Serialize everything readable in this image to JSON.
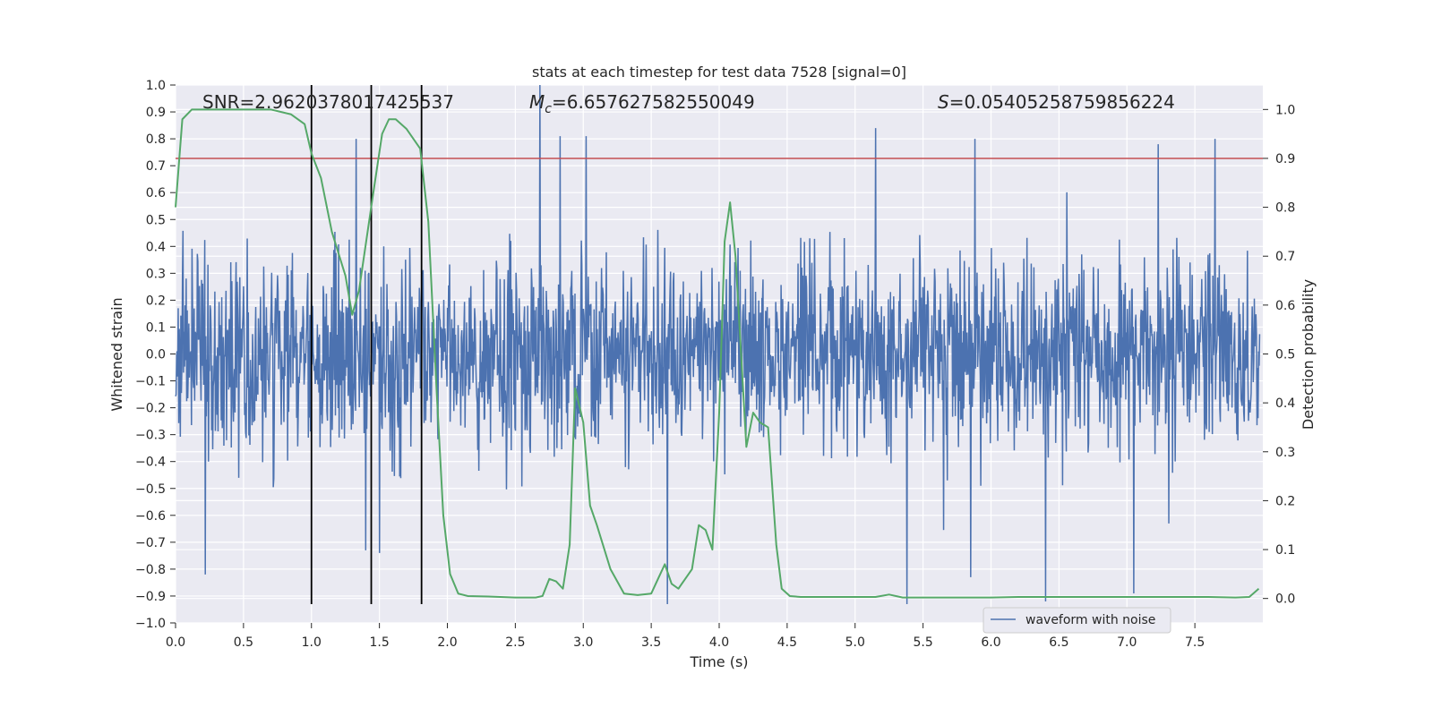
{
  "chart_data": {
    "type": "line",
    "title": "stats at each timestep for test data 7528 [signal=0]",
    "xlabel": "Time (s)",
    "ylabel": "Whitened strain",
    "y2label": "Detection probability",
    "xlim": [
      0.0,
      8.0
    ],
    "ylim": [
      -1.0,
      1.0
    ],
    "y2lim": [
      -0.05,
      1.05
    ],
    "x_ticks": [
      0.0,
      0.5,
      1.0,
      1.5,
      2.0,
      2.5,
      3.0,
      3.5,
      4.0,
      4.5,
      5.0,
      5.5,
      6.0,
      6.5,
      7.0,
      7.5
    ],
    "x_tick_labels": [
      "0.0",
      "0.5",
      "1.0",
      "1.5",
      "2.0",
      "2.5",
      "3.0",
      "3.5",
      "4.0",
      "4.5",
      "5.0",
      "5.5",
      "6.0",
      "6.5",
      "7.0",
      "7.5"
    ],
    "y_ticks": [
      -1.0,
      -0.9,
      -0.8,
      -0.7,
      -0.6,
      -0.5,
      -0.4,
      -0.3,
      -0.2,
      -0.1,
      0.0,
      0.1,
      0.2,
      0.3,
      0.4,
      0.5,
      0.6,
      0.7,
      0.8,
      0.9,
      1.0
    ],
    "y_tick_labels": [
      "−1.0",
      "−0.9",
      "−0.8",
      "−0.7",
      "−0.6",
      "−0.5",
      "−0.4",
      "−0.3",
      "−0.2",
      "−0.1",
      "0.0",
      "0.1",
      "0.2",
      "0.3",
      "0.4",
      "0.5",
      "0.6",
      "0.7",
      "0.8",
      "0.9",
      "1.0"
    ],
    "y2_ticks": [
      0.0,
      0.1,
      0.2,
      0.3,
      0.4,
      0.5,
      0.6,
      0.7,
      0.8,
      0.9,
      1.0
    ],
    "y2_tick_labels": [
      "0.0",
      "0.1",
      "0.2",
      "0.3",
      "0.4",
      "0.5",
      "0.6",
      "0.7",
      "0.8",
      "0.9",
      "1.0"
    ],
    "annotations": {
      "snr": "SNR=2.9620378017425537",
      "mc_symbol": "M",
      "mc_sub": "c",
      "mc_value": "=6.657627582550049",
      "s_symbol": "S",
      "s_value": "=0.05405258759856224"
    },
    "legend": {
      "label": "waveform with noise",
      "position": "lower-right"
    },
    "waveform": {
      "name": "waveform with noise",
      "color": "#4c72b0",
      "n_samples": 2048,
      "typical_envelope": 0.4,
      "peaks": [
        {
          "t": 0.22,
          "v": -0.82
        },
        {
          "t": 1.33,
          "v": 0.8
        },
        {
          "t": 1.4,
          "v": -0.73
        },
        {
          "t": 1.5,
          "v": -0.74
        },
        {
          "t": 2.68,
          "v": 1.0
        },
        {
          "t": 2.83,
          "v": 0.81
        },
        {
          "t": 3.02,
          "v": 0.81
        },
        {
          "t": 3.62,
          "v": -0.93
        },
        {
          "t": 5.15,
          "v": 0.84
        },
        {
          "t": 5.38,
          "v": -0.93
        },
        {
          "t": 5.85,
          "v": -0.83
        },
        {
          "t": 5.88,
          "v": 0.8
        },
        {
          "t": 6.4,
          "v": -0.92
        },
        {
          "t": 7.05,
          "v": -0.89
        },
        {
          "t": 7.23,
          "v": 0.78
        },
        {
          "t": 7.65,
          "v": 0.8
        }
      ]
    },
    "detection_probability": {
      "color": "#55a868",
      "x": [
        0.0,
        0.05,
        0.12,
        0.2,
        0.3,
        0.5,
        0.7,
        0.85,
        0.95,
        1.0,
        1.07,
        1.15,
        1.25,
        1.3,
        1.35,
        1.45,
        1.52,
        1.57,
        1.62,
        1.7,
        1.8,
        1.86,
        1.92,
        1.97,
        2.02,
        2.08,
        2.15,
        2.3,
        2.5,
        2.65,
        2.7,
        2.75,
        2.8,
        2.85,
        2.9,
        2.94,
        3.0,
        3.05,
        3.1,
        3.2,
        3.3,
        3.4,
        3.5,
        3.55,
        3.6,
        3.65,
        3.7,
        3.8,
        3.85,
        3.9,
        3.95,
        4.0,
        4.04,
        4.08,
        4.12,
        4.2,
        4.25,
        4.3,
        4.36,
        4.42,
        4.46,
        4.52,
        4.6,
        4.8,
        5.0,
        5.15,
        5.25,
        5.35,
        5.6,
        6.0,
        6.2,
        6.4,
        6.6,
        7.0,
        7.25,
        7.4,
        7.5,
        7.6,
        7.8,
        7.9,
        7.97
      ],
      "values": [
        0.8,
        0.98,
        1.0,
        1.0,
        1.0,
        1.0,
        1.0,
        0.99,
        0.97,
        0.91,
        0.86,
        0.75,
        0.66,
        0.58,
        0.63,
        0.82,
        0.95,
        0.98,
        0.98,
        0.96,
        0.92,
        0.77,
        0.43,
        0.17,
        0.05,
        0.01,
        0.005,
        0.004,
        0.002,
        0.002,
        0.005,
        0.04,
        0.035,
        0.02,
        0.11,
        0.43,
        0.36,
        0.19,
        0.15,
        0.06,
        0.01,
        0.007,
        0.01,
        0.04,
        0.07,
        0.03,
        0.02,
        0.06,
        0.15,
        0.14,
        0.1,
        0.38,
        0.73,
        0.81,
        0.7,
        0.31,
        0.38,
        0.36,
        0.35,
        0.11,
        0.02,
        0.005,
        0.003,
        0.003,
        0.003,
        0.003,
        0.008,
        0.002,
        0.002,
        0.002,
        0.003,
        0.003,
        0.003,
        0.003,
        0.003,
        0.003,
        0.003,
        0.003,
        0.002,
        0.003,
        0.02
      ]
    },
    "threshold": {
      "value": 0.9,
      "axis": "y2",
      "color": "#c44e52"
    },
    "vertical_lines": {
      "x": [
        1.0,
        1.44,
        1.81
      ],
      "y_from": -0.93,
      "y_to": 1.0,
      "color": "#000000"
    }
  }
}
